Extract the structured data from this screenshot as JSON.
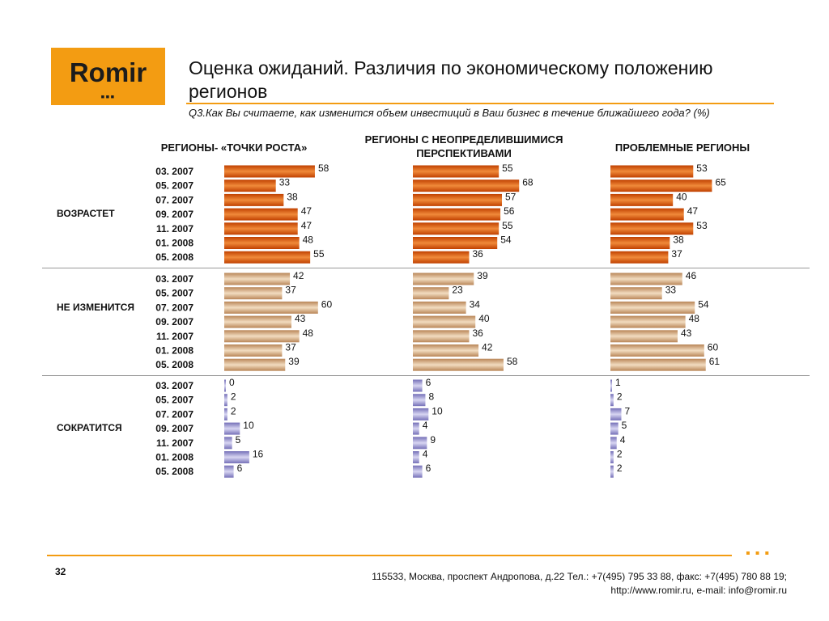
{
  "logo": {
    "text": "Romir",
    "dots": "▪▪▪"
  },
  "title": "Оценка ожиданий. Различия по экономическому положению регионов",
  "question": "Q3.Как Вы считаете, как изменится объем инвестиций в Ваш бизнес в течение ближайшего года? (%)",
  "columns": [
    {
      "label": "РЕГИОНЫ- «ТОЧКИ РОСТА»"
    },
    {
      "label": "РЕГИОНЫ   С НЕОПРЕДЕЛИВШИМИСЯ ПЕРСПЕКТИВАМИ"
    },
    {
      "label": "ПРОБЛЕМНЫЕ РЕГИОНЫ"
    }
  ],
  "groups": [
    {
      "label": "ВОЗРАСТЕТ"
    },
    {
      "label": "НЕ ИЗМЕНИТСЯ"
    },
    {
      "label": "СОКРАТИТСЯ"
    }
  ],
  "chart_data": {
    "type": "bar",
    "orientation": "horizontal",
    "categories": [
      "03. 2007",
      "05. 2007",
      "07. 2007",
      "09. 2007",
      "11. 2007",
      "01. 2008",
      "05. 2008"
    ],
    "panels": [
      {
        "row": "ВОЗРАСТЕТ",
        "column": "РЕГИОНЫ- «ТОЧКИ РОСТА»",
        "color": "#c84a08",
        "values": [
          58,
          33,
          38,
          47,
          47,
          48,
          55
        ]
      },
      {
        "row": "ВОЗРАСТЕТ",
        "column": "РЕГИОНЫ   С НЕОПРЕДЕЛИВШИМИСЯ ПЕРСПЕКТИВАМИ",
        "color": "#c84a08",
        "values": [
          55,
          68,
          57,
          56,
          55,
          54,
          36
        ]
      },
      {
        "row": "ВОЗРАСТЕТ",
        "column": "ПРОБЛЕМНЫЕ РЕГИОНЫ",
        "color": "#c84a08",
        "values": [
          53,
          65,
          40,
          47,
          53,
          38,
          37
        ]
      },
      {
        "row": "НЕ ИЗМЕНИТСЯ",
        "column": "РЕГИОНЫ- «ТОЧКИ РОСТА»",
        "color": "#c9976a",
        "values": [
          42,
          37,
          60,
          43,
          48,
          37,
          39
        ]
      },
      {
        "row": "НЕ ИЗМЕНИТСЯ",
        "column": "РЕГИОНЫ   С НЕОПРЕДЕЛИВШИМИСЯ ПЕРСПЕКТИВАМИ",
        "color": "#c9976a",
        "values": [
          39,
          23,
          34,
          40,
          36,
          42,
          58
        ]
      },
      {
        "row": "НЕ ИЗМЕНИТСЯ",
        "column": "ПРОБЛЕМНЫЕ РЕГИОНЫ",
        "color": "#c9976a",
        "values": [
          46,
          33,
          54,
          48,
          43,
          60,
          61
        ]
      },
      {
        "row": "СОКРАТИТСЯ",
        "column": "РЕГИОНЫ- «ТОЧКИ РОСТА»",
        "color": "#8a86c8",
        "values": [
          0,
          2,
          2,
          10,
          5,
          16,
          6
        ]
      },
      {
        "row": "СОКРАТИТСЯ",
        "column": "РЕГИОНЫ   С НЕОПРЕДЕЛИВШИМИСЯ ПЕРСПЕКТИВАМИ",
        "color": "#8a86c8",
        "values": [
          6,
          8,
          10,
          4,
          9,
          4,
          6
        ]
      },
      {
        "row": "СОКРАТИТСЯ",
        "column": "ПРОБЛЕМНЫЕ РЕГИОНЫ",
        "color": "#8a86c8",
        "values": [
          1,
          2,
          7,
          5,
          4,
          2,
          2
        ]
      }
    ]
  },
  "footer": {
    "page": "32",
    "dots": "▪▪▪",
    "address": "115533, Москва, проспект Андропова, д.22   Тел.: +7(495) 795 33 88, факс: +7(495) 780 88 19;",
    "web": "http://www.romir.ru, e-mail: info@romir.ru"
  }
}
